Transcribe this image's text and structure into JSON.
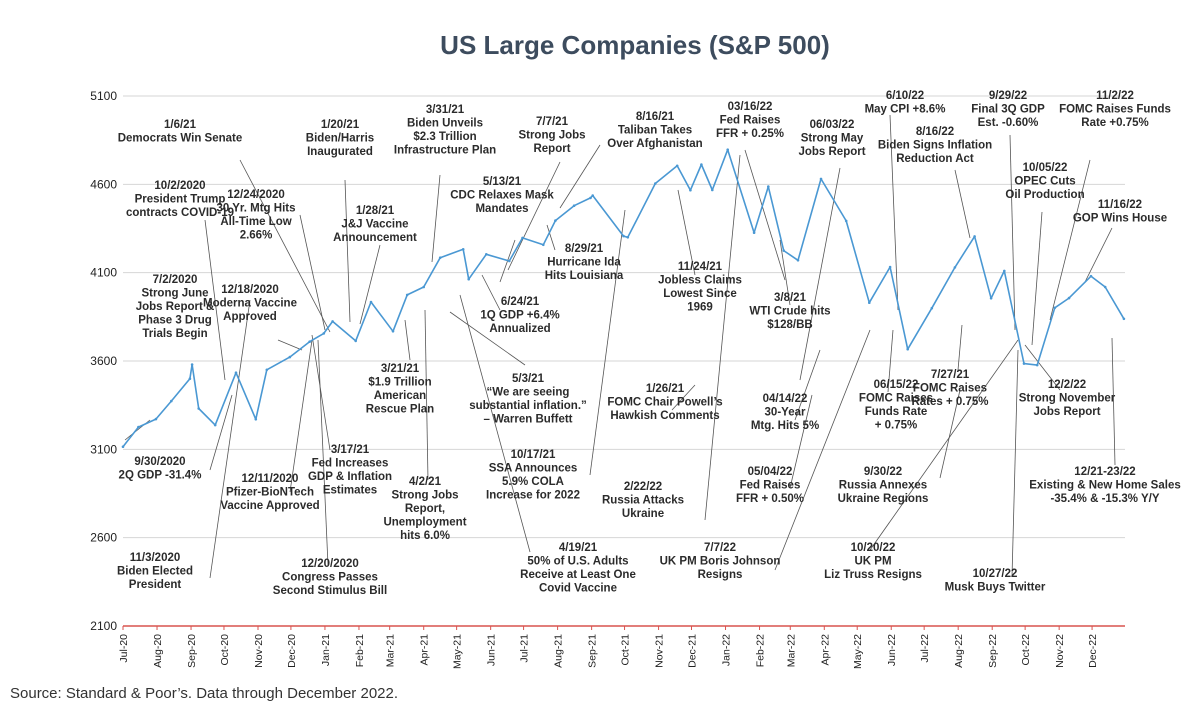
{
  "page": {
    "source": "Source: Standard & Poor’s. Data through December 2022."
  },
  "colors": {
    "line": "#4a98d3",
    "axis": "#d9534f",
    "grid": "#d6d6d6",
    "leader": "#555555",
    "title": "#3d4c5e"
  },
  "chart_data": {
    "type": "line",
    "title": "US Large Companies (S&P 500)",
    "xlabel": "",
    "ylabel": "",
    "ylim": [
      2100,
      5100
    ],
    "yticks": [
      2100,
      2600,
      3100,
      3600,
      4100,
      4600,
      5100
    ],
    "grid": true,
    "xlim": [
      "2020-07-01",
      "2022-12-31"
    ],
    "xticks": [
      {
        "date": "2020-07-01",
        "label": "Jul-20"
      },
      {
        "date": "2020-08-01",
        "label": "Aug-20"
      },
      {
        "date": "2020-09-01",
        "label": "Sep-20"
      },
      {
        "date": "2020-10-01",
        "label": "Oct-20"
      },
      {
        "date": "2020-11-01",
        "label": "Nov-20"
      },
      {
        "date": "2020-12-01",
        "label": "Dec-20"
      },
      {
        "date": "2021-01-01",
        "label": "Jan-21"
      },
      {
        "date": "2021-02-01",
        "label": "Feb-21"
      },
      {
        "date": "2021-03-01",
        "label": "Mar-21"
      },
      {
        "date": "2021-04-01",
        "label": "Apr-21"
      },
      {
        "date": "2021-05-01",
        "label": "May-21"
      },
      {
        "date": "2021-06-01",
        "label": "Jun-21"
      },
      {
        "date": "2021-07-01",
        "label": "Jul-21"
      },
      {
        "date": "2021-08-01",
        "label": "Aug-21"
      },
      {
        "date": "2021-09-01",
        "label": "Sep-21"
      },
      {
        "date": "2021-10-01",
        "label": "Oct-21"
      },
      {
        "date": "2021-11-01",
        "label": "Nov-21"
      },
      {
        "date": "2021-12-01",
        "label": "Dec-21"
      },
      {
        "date": "2022-01-01",
        "label": "Jan-22"
      },
      {
        "date": "2022-02-01",
        "label": "Feb-22"
      },
      {
        "date": "2022-03-01",
        "label": "Mar-22"
      },
      {
        "date": "2022-04-01",
        "label": "Apr-22"
      },
      {
        "date": "2022-05-01",
        "label": "May-22"
      },
      {
        "date": "2022-06-01",
        "label": "Jun-22"
      },
      {
        "date": "2022-07-01",
        "label": "Jul-22"
      },
      {
        "date": "2022-08-01",
        "label": "Aug-22"
      },
      {
        "date": "2022-09-01",
        "label": "Sep-22"
      },
      {
        "date": "2022-10-01",
        "label": "Oct-22"
      },
      {
        "date": "2022-11-01",
        "label": "Nov-22"
      },
      {
        "date": "2022-12-01",
        "label": "Dec-22"
      }
    ],
    "series": [
      {
        "name": "",
        "points": [
          [
            "2020-07-01",
            3115
          ],
          [
            "2020-07-15",
            3226
          ],
          [
            "2020-07-31",
            3271
          ],
          [
            "2020-08-14",
            3373
          ],
          [
            "2020-08-31",
            3500
          ],
          [
            "2020-09-02",
            3580
          ],
          [
            "2020-09-08",
            3331
          ],
          [
            "2020-09-23",
            3237
          ],
          [
            "2020-10-12",
            3534
          ],
          [
            "2020-10-30",
            3270
          ],
          [
            "2020-11-09",
            3550
          ],
          [
            "2020-11-30",
            3622
          ],
          [
            "2020-12-18",
            3709
          ],
          [
            "2020-12-31",
            3756
          ],
          [
            "2021-01-08",
            3824
          ],
          [
            "2021-01-29",
            3714
          ],
          [
            "2021-02-12",
            3934
          ],
          [
            "2021-03-04",
            3768
          ],
          [
            "2021-03-17",
            3974
          ],
          [
            "2021-04-01",
            4019
          ],
          [
            "2021-04-16",
            4185
          ],
          [
            "2021-05-07",
            4232
          ],
          [
            "2021-05-12",
            4063
          ],
          [
            "2021-05-28",
            4204
          ],
          [
            "2021-06-18",
            4166
          ],
          [
            "2021-06-30",
            4297
          ],
          [
            "2021-07-19",
            4258
          ],
          [
            "2021-07-30",
            4395
          ],
          [
            "2021-08-16",
            4479
          ],
          [
            "2021-08-31",
            4523
          ],
          [
            "2021-09-02",
            4537
          ],
          [
            "2021-09-30",
            4307
          ],
          [
            "2021-10-04",
            4300
          ],
          [
            "2021-10-29",
            4605
          ],
          [
            "2021-11-18",
            4705
          ],
          [
            "2021-11-30",
            4567
          ],
          [
            "2021-12-10",
            4712
          ],
          [
            "2021-12-20",
            4568
          ],
          [
            "2022-01-03",
            4796
          ],
          [
            "2022-01-27",
            4326
          ],
          [
            "2022-02-09",
            4587
          ],
          [
            "2022-02-23",
            4225
          ],
          [
            "2022-03-08",
            4170
          ],
          [
            "2022-03-29",
            4631
          ],
          [
            "2022-04-21",
            4393
          ],
          [
            "2022-05-12",
            3930
          ],
          [
            "2022-05-31",
            4132
          ],
          [
            "2022-06-16",
            3667
          ],
          [
            "2022-07-08",
            3899
          ],
          [
            "2022-07-29",
            4130
          ],
          [
            "2022-08-16",
            4305
          ],
          [
            "2022-08-31",
            3955
          ],
          [
            "2022-09-12",
            4110
          ],
          [
            "2022-09-30",
            3585
          ],
          [
            "2022-10-12",
            3577
          ],
          [
            "2022-10-28",
            3901
          ],
          [
            "2022-11-10",
            3956
          ],
          [
            "2022-11-30",
            4080
          ],
          [
            "2022-12-13",
            4019
          ],
          [
            "2022-12-30",
            3839
          ]
        ]
      }
    ],
    "annotations": [
      {
        "lines": [
          "1/6/21",
          "Democrats Win Senate"
        ]
      },
      {
        "lines": [
          "1/20/21",
          "Biden/Harris",
          "Inaugurated"
        ]
      },
      {
        "lines": [
          "3/31/21",
          "Biden Unveils",
          "$2.3 Trillion",
          "Infrastructure Plan"
        ]
      },
      {
        "lines": [
          "7/7/21",
          "Strong Jobs",
          "Report"
        ]
      },
      {
        "lines": [
          "8/16/21",
          "Taliban Takes",
          "Over Afghanistan"
        ]
      },
      {
        "lines": [
          "03/16/22",
          "Fed Raises",
          "FFR + 0.25%"
        ]
      },
      {
        "lines": [
          "06/03/22",
          "Strong May",
          "Jobs Report"
        ]
      },
      {
        "lines": [
          "6/10/22",
          "May CPI +8.6%"
        ]
      },
      {
        "lines": [
          "8/16/22",
          "Biden Signs Inflation",
          "Reduction Act"
        ]
      },
      {
        "lines": [
          "9/29/22",
          "Final 3Q GDP",
          "Est. -0.60%"
        ]
      },
      {
        "lines": [
          "11/2/22",
          "FOMC Raises Funds",
          "Rate +0.75%"
        ]
      },
      {
        "lines": [
          "10/05/22",
          "OPEC Cuts",
          "Oil Production"
        ]
      },
      {
        "lines": [
          "11/16/22",
          "GOP Wins House"
        ]
      },
      {
        "lines": [
          "10/2/2020",
          "President Trump",
          "contracts COVID-19"
        ]
      },
      {
        "lines": [
          "12/24/2020",
          "30 Yr. Mtg Hits",
          "All-Time Low",
          "2.66%"
        ]
      },
      {
        "lines": [
          "1/28/21",
          "J&J Vaccine",
          "Announcement"
        ]
      },
      {
        "lines": [
          "5/13/21",
          "CDC Relaxes Mask",
          "Mandates"
        ]
      },
      {
        "lines": [
          "8/29/21",
          "Hurricane Ida",
          "Hits Louisiana"
        ]
      },
      {
        "lines": [
          "11/24/21",
          "Jobless Claims",
          "Lowest Since",
          "1969"
        ]
      },
      {
        "lines": [
          "3/8/21",
          "WTI Crude hits",
          "$128/BB"
        ]
      },
      {
        "lines": [
          "7/2/2020",
          "Strong June",
          "Jobs Report &",
          "Phase 3 Drug",
          "Trials Begin"
        ]
      },
      {
        "lines": [
          "12/18/2020",
          "Moderna Vaccine",
          "Approved"
        ]
      },
      {
        "lines": [
          "6/24/21",
          "1Q GDP +6.4%",
          "Annualized"
        ]
      },
      {
        "lines": [
          "5/3/21",
          "“We are seeing",
          "substantial inflation.”",
          "– Warren Buffett"
        ]
      },
      {
        "lines": [
          "1/26/21",
          "FOMC Chair Powell’s",
          "Hawkish Comments"
        ]
      },
      {
        "lines": [
          "04/14/22",
          "30-Year",
          "Mtg. Hits 5%"
        ]
      },
      {
        "lines": [
          "06/15/22",
          "FOMC Raises",
          "Funds Rate",
          "+ 0.75%"
        ]
      },
      {
        "lines": [
          "7/27/21",
          "FOMC Raises",
          "Rates + 0.75%"
        ]
      },
      {
        "lines": [
          "12/2/22",
          "Strong November",
          "Jobs Report"
        ]
      },
      {
        "lines": [
          "3/21/21",
          "$1.9 Trillion",
          "American",
          "Rescue Plan"
        ]
      },
      {
        "lines": [
          "3/17/21",
          "Fed Increases",
          "GDP & Inflation",
          "Estimates"
        ]
      },
      {
        "lines": [
          "9/30/2020",
          "2Q GDP -31.4%"
        ]
      },
      {
        "lines": [
          "12/11/2020",
          "Pfizer-BioNTech",
          "Vaccine Approved"
        ]
      },
      {
        "lines": [
          "10/17/21",
          "SSA Announces",
          "5.9% COLA",
          "Increase for 2022"
        ]
      },
      {
        "lines": [
          "05/04/22",
          "Fed Raises",
          "FFR + 0.50%"
        ]
      },
      {
        "lines": [
          "9/30/22",
          "Russia Annexes",
          "Ukraine Regions"
        ]
      },
      {
        "lines": [
          "12/21-23/22",
          "Existing & New Home Sales",
          "-35.4% & -15.3% Y/Y"
        ]
      },
      {
        "lines": [
          "4/2/21",
          "Strong Jobs",
          "Report,",
          "Unemployment",
          "hits 6.0%"
        ]
      },
      {
        "lines": [
          "2/22/22",
          "Russia Attacks",
          "Ukraine"
        ]
      },
      {
        "lines": [
          "11/3/2020",
          "Biden Elected",
          "President"
        ]
      },
      {
        "lines": [
          "12/20/2020",
          "Congress Passes",
          "Second Stimulus Bill"
        ]
      },
      {
        "lines": [
          "4/19/21",
          "50% of U.S. Adults",
          "Receive at Least One",
          "Covid Vaccine"
        ]
      },
      {
        "lines": [
          "7/7/22",
          "UK PM Boris Johnson",
          "Resigns"
        ]
      },
      {
        "lines": [
          "10/20/22",
          "UK PM",
          "Liz Truss Resigns"
        ]
      },
      {
        "lines": [
          "10/27/22",
          "Musk Buys Twitter"
        ]
      }
    ]
  }
}
